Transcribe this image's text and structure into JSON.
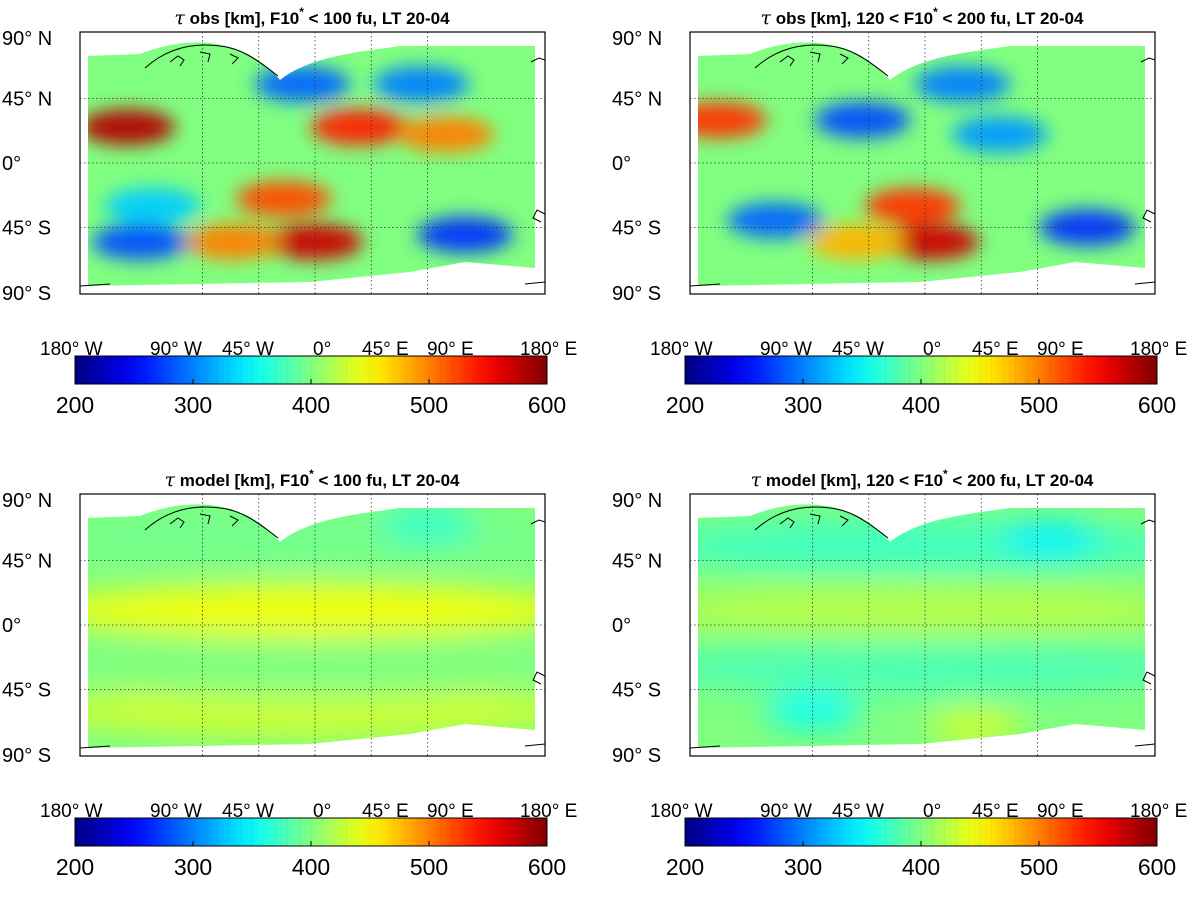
{
  "chart_data": [
    {
      "type": "heatmap",
      "title": "τ obs [km], F10* < 100 fu, LT 20-04",
      "title_parts": {
        "sym": "τ",
        "a": " obs [km], F10",
        "star": "*",
        "b": " < 100 fu, LT 20-04"
      },
      "lat_ticks": [
        "90° N",
        "45° N",
        "0°",
        "45° S",
        "90° S"
      ],
      "lon_ticks": [
        "180° W",
        "90° W",
        "45° W",
        "0°",
        "45° E",
        "90° E",
        "180° E"
      ],
      "colorbar": {
        "min": 200,
        "max": 600,
        "ticks": [
          "200",
          "300",
          "400",
          "500",
          "600"
        ],
        "colormap": "jet"
      },
      "features": [
        {
          "label": "high",
          "lon": -150,
          "lat": 25,
          "value": 580
        },
        {
          "label": "high",
          "lon": 35,
          "lat": 25,
          "value": 540
        },
        {
          "label": "high",
          "lon": 105,
          "lat": 20,
          "value": 500
        },
        {
          "label": "high",
          "lon": -25,
          "lat": -25,
          "value": 520
        },
        {
          "label": "high",
          "lon": 0,
          "lat": -55,
          "value": 570
        },
        {
          "label": "high",
          "lon": -65,
          "lat": -55,
          "value": 500
        },
        {
          "label": "low",
          "lon": -10,
          "lat": 55,
          "value": 290
        },
        {
          "label": "low",
          "lon": 85,
          "lat": 55,
          "value": 300
        },
        {
          "label": "low",
          "lon": 120,
          "lat": -50,
          "value": 270
        },
        {
          "label": "low",
          "lon": -140,
          "lat": -55,
          "value": 280
        },
        {
          "label": "low",
          "lon": -130,
          "lat": -30,
          "value": 330
        }
      ]
    },
    {
      "type": "heatmap",
      "title": "τ obs [km], 120 < F10* < 200 fu, LT 20-04",
      "title_parts": {
        "sym": "τ",
        "a": " obs [km], 120 < F10",
        "star": "*",
        "b": " < 200 fu, LT 20-04"
      },
      "lat_ticks": [
        "90° N",
        "45° N",
        "0°",
        "45° S",
        "90° S"
      ],
      "lon_ticks": [
        "180° W",
        "90° W",
        "45° W",
        "0°",
        "45° E",
        "90° E",
        "180° E"
      ],
      "colorbar": {
        "min": 200,
        "max": 600,
        "ticks": [
          "200",
          "300",
          "400",
          "500",
          "600"
        ],
        "colormap": "jet"
      },
      "features": [
        {
          "label": "high",
          "lon": -165,
          "lat": 30,
          "value": 530
        },
        {
          "label": "high",
          "lon": 5,
          "lat": -55,
          "value": 570
        },
        {
          "label": "high",
          "lon": -10,
          "lat": -30,
          "value": 530
        },
        {
          "label": "high",
          "lon": -55,
          "lat": -55,
          "value": 480
        },
        {
          "label": "low",
          "lon": -50,
          "lat": 30,
          "value": 280
        },
        {
          "label": "low",
          "lon": 30,
          "lat": 55,
          "value": 300
        },
        {
          "label": "low",
          "lon": -120,
          "lat": -40,
          "value": 290
        },
        {
          "label": "low",
          "lon": 130,
          "lat": -45,
          "value": 270
        },
        {
          "label": "low",
          "lon": 60,
          "lat": 20,
          "value": 310
        }
      ]
    },
    {
      "type": "heatmap",
      "title": "τ model [km], F10* < 100 fu, LT 20-04",
      "title_parts": {
        "sym": "τ",
        "a": " model [km], F10",
        "star": "*",
        "b": " < 100 fu, LT 20-04"
      },
      "lat_ticks": [
        "90° N",
        "45° N",
        "0°",
        "45° S",
        "90° S"
      ],
      "lon_ticks": [
        "180° W",
        "90° W",
        "45° W",
        "0°",
        "45° E",
        "90° E",
        "180° E"
      ],
      "colorbar": {
        "min": 200,
        "max": 600,
        "ticks": [
          "200",
          "300",
          "400",
          "500",
          "600"
        ],
        "colormap": "jet"
      },
      "features": [
        {
          "label": "band",
          "lon": 0,
          "lat": 10,
          "value": 445
        },
        {
          "label": "band",
          "lon": 0,
          "lat": -60,
          "value": 430
        },
        {
          "label": "background",
          "lon": 0,
          "lat": 60,
          "value": 395
        },
        {
          "label": "background",
          "lon": 0,
          "lat": -30,
          "value": 400
        },
        {
          "label": "low",
          "lon": 90,
          "lat": 70,
          "value": 370
        }
      ]
    },
    {
      "type": "heatmap",
      "title": "τ model [km], 120 < F10* < 200 fu, LT 20-04",
      "title_parts": {
        "sym": "τ",
        "a": " model [km], 120 < F10",
        "star": "*",
        "b": " < 200 fu, LT 20-04"
      },
      "lat_ticks": [
        "90° N",
        "45° N",
        "0°",
        "45° S",
        "90° S"
      ],
      "lon_ticks": [
        "180° W",
        "90° W",
        "45° W",
        "0°",
        "45° E",
        "90° E",
        "180° E"
      ],
      "colorbar": {
        "min": 200,
        "max": 600,
        "ticks": [
          "200",
          "300",
          "400",
          "500",
          "600"
        ],
        "colormap": "jet"
      },
      "features": [
        {
          "label": "band",
          "lon": 0,
          "lat": 10,
          "value": 420
        },
        {
          "label": "background",
          "lon": 0,
          "lat": 55,
          "value": 375
        },
        {
          "label": "background",
          "lon": 0,
          "lat": -30,
          "value": 380
        },
        {
          "label": "low",
          "lon": -90,
          "lat": -60,
          "value": 355
        },
        {
          "label": "low",
          "lon": 100,
          "lat": 60,
          "value": 345
        },
        {
          "label": "high",
          "lon": 40,
          "lat": -70,
          "value": 430
        }
      ]
    }
  ]
}
